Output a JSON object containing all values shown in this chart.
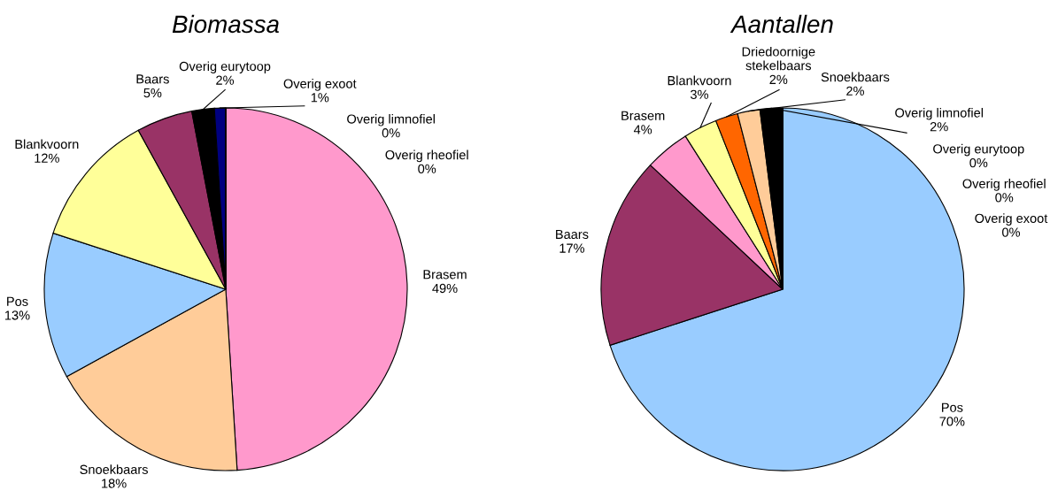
{
  "chart_data": [
    {
      "type": "pie",
      "title": "Biomassa",
      "categories": [
        "Brasem",
        "Snoekbaars",
        "Pos",
        "Blankvoorn",
        "Baars",
        "Overig eurytoop",
        "Overig exoot",
        "Overig limnofiel",
        "Overig rheofiel"
      ],
      "values": [
        49,
        18,
        13,
        12,
        5,
        2,
        1,
        0,
        0
      ],
      "value_labels": [
        "49%",
        "18%",
        "13%",
        "12%",
        "5%",
        "2%",
        "1%",
        "0%",
        "0%"
      ],
      "colors": [
        "#ff99cc",
        "#ffcc99",
        "#99ccff",
        "#ffff99",
        "#993366",
        "#000000",
        "#000080",
        "#ff6600",
        "#00ccff"
      ]
    },
    {
      "type": "pie",
      "title": "Aantallen",
      "categories": [
        "Pos",
        "Baars",
        "Brasem",
        "Blankvoorn",
        "Driedoornige\nstekelbaars",
        "Snoekbaars",
        "Overig limnofiel",
        "Overig eurytoop",
        "Overig rheofiel",
        "Overig exoot"
      ],
      "values": [
        70,
        17,
        4,
        3,
        2,
        2,
        2,
        0,
        0,
        0
      ],
      "value_labels": [
        "70%",
        "17%",
        "4%",
        "3%",
        "2%",
        "2%",
        "2%",
        "0%",
        "0%",
        "0%"
      ],
      "colors": [
        "#99ccff",
        "#993366",
        "#ff99cc",
        "#ffff99",
        "#ff6600",
        "#ffcc99",
        "#000000",
        "#00ccff",
        "#000080",
        "#808080"
      ]
    }
  ]
}
